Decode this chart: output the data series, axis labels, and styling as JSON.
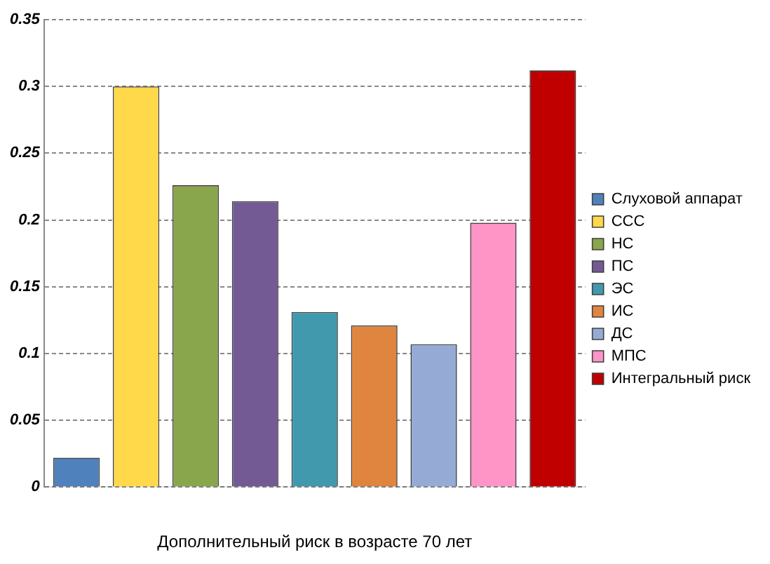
{
  "chart_data": {
    "type": "bar",
    "xlabel": "Дополнительный риск в возрасте 70 лет",
    "categories": [
      null
    ],
    "series": [
      {
        "name": "Слуховой аппарат",
        "color": "#4f81bd",
        "values": [
          0.022
        ]
      },
      {
        "name": "ССС",
        "color": "#ffd94a",
        "values": [
          0.3
        ]
      },
      {
        "name": "НС",
        "color": "#8aa64c",
        "values": [
          0.226
        ]
      },
      {
        "name": "ПС",
        "color": "#735a95",
        "values": [
          0.214
        ]
      },
      {
        "name": "ЭС",
        "color": "#4199ae",
        "values": [
          0.131
        ]
      },
      {
        "name": "ИС",
        "color": "#e0853f",
        "values": [
          0.121
        ]
      },
      {
        "name": "ДС",
        "color": "#95abd6",
        "values": [
          0.107
        ]
      },
      {
        "name": "МПС",
        "color": "#ff94c6",
        "values": [
          0.198
        ]
      },
      {
        "name": "Интегральный риск",
        "color": "#c00000",
        "values": [
          0.312
        ]
      }
    ],
    "ylim": [
      0,
      0.35
    ],
    "yticks": [
      0,
      0.05,
      0.1,
      0.15,
      0.2,
      0.25,
      0.3,
      0.35
    ],
    "grid": "y",
    "legend": "right"
  }
}
